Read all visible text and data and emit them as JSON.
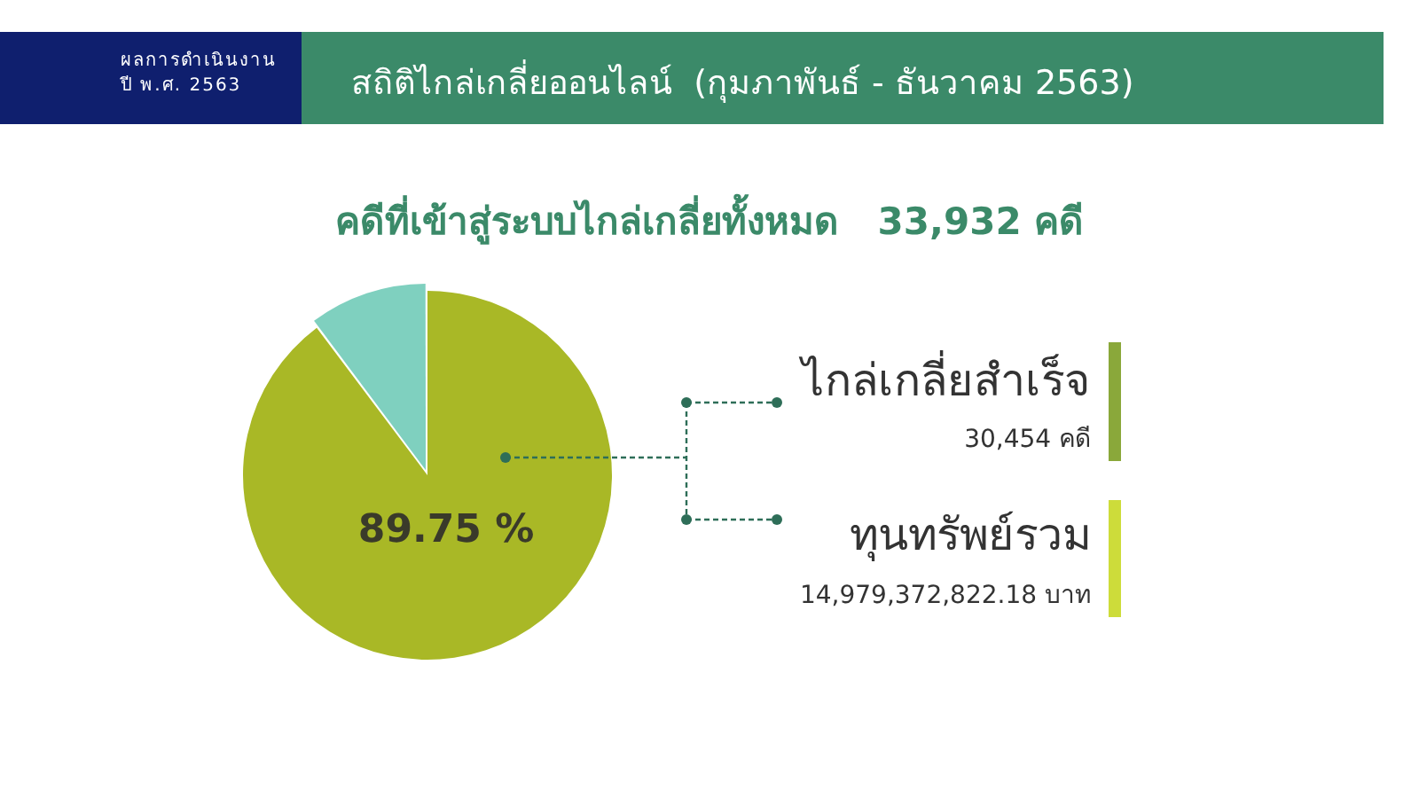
{
  "chart_data": {
    "type": "pie",
    "title": "สถิติไกล่เกลี่ยออนไลน์  (กุมภาพันธ์ - ธันวาคม 2563)",
    "subtitle": "คดีที่เข้าสู่ระบบไกล่เกลี่ยทั้งหมด   33,932 คดี",
    "categories": [
      null,
      null
    ],
    "values": [
      89.75,
      10.25
    ],
    "colors": [
      "#a9b826",
      "#7fd0bf"
    ],
    "value_labels": [
      "89.75 %",
      null
    ],
    "legend": false,
    "annotations": [
      "ผลการดำเนินงาน\nปี พ.ศ. 2563",
      "ไกล่เกลี่ยสำเร็จ",
      "30,454 คดี",
      "ทุนทรัพย์รวม",
      "14,979,372,822.18 บาท"
    ]
  }
}
